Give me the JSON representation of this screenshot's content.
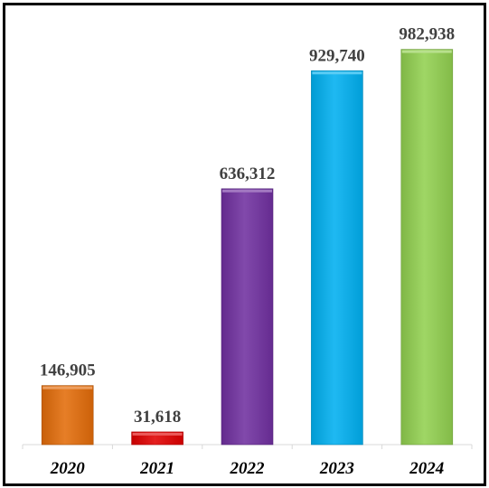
{
  "chart_data": {
    "type": "bar",
    "title": "",
    "xlabel": "",
    "ylabel": "",
    "categories": [
      "2020",
      "2021",
      "2022",
      "2023",
      "2024"
    ],
    "values": [
      146905,
      31618,
      636312,
      929740,
      982938
    ],
    "value_labels": [
      "146,905",
      "31,618",
      "636,312",
      "929,740",
      "982,938"
    ],
    "colors": [
      "#E36C0A",
      "#E00000",
      "#7030A0",
      "#00B0F0",
      "#92D050"
    ],
    "ylim": [
      0,
      1000000
    ],
    "grid": false,
    "legend": "none"
  }
}
